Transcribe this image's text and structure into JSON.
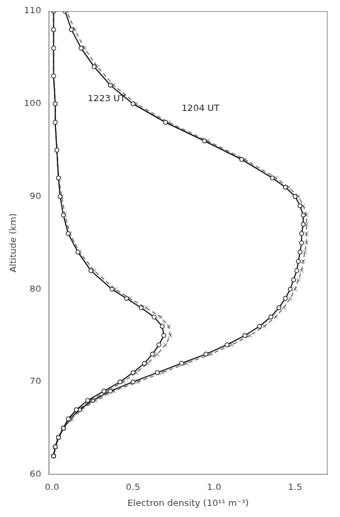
{
  "chart_data": {
    "type": "line",
    "xlabel": "Electron density (10¹¹ m⁻³)",
    "ylabel": "Altitude (km)",
    "xlim": [
      -0.02,
      1.7
    ],
    "ylim": [
      60,
      110
    ],
    "xticks": [
      {
        "value": 0,
        "label": "0.0"
      },
      0.5,
      {
        "value": 1.0,
        "label": "1.0"
      },
      1.5
    ],
    "yticks": [
      60,
      70,
      80,
      90,
      100,
      110
    ],
    "grid": false,
    "annotations": [
      {
        "text": "1223 UT",
        "x": 0.22,
        "y": 100.5
      },
      {
        "text": "1204 UT",
        "x": 0.8,
        "y": 99.5
      }
    ],
    "series": [
      {
        "color": "#000000",
        "line_style": "solid",
        "marker": "circle",
        "x": [
          0.01,
          0.02,
          0.04,
          0.07,
          0.1,
          0.15,
          0.22,
          0.32,
          0.42,
          0.5,
          0.57,
          0.62,
          0.66,
          0.69,
          0.68,
          0.63,
          0.55,
          0.46,
          0.37,
          0.24,
          0.16,
          0.1,
          0.07,
          0.05,
          0.04,
          0.03,
          0.02,
          0.02,
          0.01,
          0.01,
          0.01,
          0.01
        ],
        "y": [
          62,
          63,
          64,
          65,
          66,
          67,
          68,
          69,
          70,
          71,
          72,
          73,
          74,
          75,
          76,
          77,
          78,
          79,
          80,
          82,
          84,
          86,
          88,
          90,
          92,
          95,
          98,
          100,
          103,
          106,
          108,
          110
        ]
      },
      {
        "color": "#666666",
        "line_style": "dashed",
        "marker": "x",
        "x": [
          0.01,
          0.02,
          0.04,
          0.07,
          0.11,
          0.16,
          0.24,
          0.34,
          0.44,
          0.52,
          0.59,
          0.65,
          0.7,
          0.73,
          0.72,
          0.67,
          0.58,
          0.48,
          0.39,
          0.26,
          0.17,
          0.11,
          0.08,
          0.06,
          0.04,
          0.03,
          0.02,
          0.02,
          0.01,
          0.01,
          0.01,
          0.01
        ],
        "y": [
          62,
          63,
          64,
          65,
          66,
          67,
          68,
          69,
          70,
          71,
          72,
          73,
          74,
          75,
          76,
          77,
          78,
          79,
          80,
          82,
          84,
          86,
          88,
          90,
          92,
          95,
          98,
          100,
          103,
          106,
          108,
          110
        ]
      },
      {
        "color": "#000000",
        "line_style": "solid",
        "marker": "circle",
        "x": [
          0.01,
          0.02,
          0.04,
          0.07,
          0.11,
          0.17,
          0.25,
          0.36,
          0.5,
          0.65,
          0.8,
          0.95,
          1.08,
          1.19,
          1.28,
          1.35,
          1.4,
          1.44,
          1.47,
          1.49,
          1.51,
          1.52,
          1.53,
          1.54,
          1.54,
          1.55,
          1.55,
          1.53,
          1.5,
          1.44,
          1.36,
          1.17,
          0.94,
          0.7,
          0.5,
          0.36,
          0.26,
          0.18,
          0.12,
          0.08
        ],
        "y": [
          62,
          63,
          64,
          65,
          66,
          67,
          68,
          69,
          70,
          71,
          72,
          73,
          74,
          75,
          76,
          77,
          78,
          79,
          80,
          81,
          82,
          83,
          84,
          85,
          86,
          87,
          88,
          89,
          90,
          91,
          92,
          94,
          96,
          98,
          100,
          102,
          104,
          106,
          108,
          110
        ]
      },
      {
        "color": "#666666",
        "line_style": "dashed",
        "marker": "x",
        "x": [
          0.01,
          0.02,
          0.04,
          0.07,
          0.12,
          0.18,
          0.27,
          0.38,
          0.53,
          0.68,
          0.83,
          0.98,
          1.11,
          1.22,
          1.31,
          1.38,
          1.43,
          1.47,
          1.5,
          1.52,
          1.54,
          1.55,
          1.56,
          1.57,
          1.57,
          1.57,
          1.57,
          1.55,
          1.52,
          1.46,
          1.38,
          1.19,
          0.96,
          0.72,
          0.52,
          0.38,
          0.28,
          0.2,
          0.14,
          0.09
        ],
        "y": [
          62,
          63,
          64,
          65,
          66,
          67,
          68,
          69,
          70,
          71,
          72,
          73,
          74,
          75,
          76,
          77,
          78,
          79,
          80,
          81,
          82,
          83,
          84,
          85,
          86,
          87,
          88,
          89,
          90,
          91,
          92,
          94,
          96,
          98,
          100,
          102,
          104,
          106,
          108,
          110
        ]
      }
    ]
  }
}
